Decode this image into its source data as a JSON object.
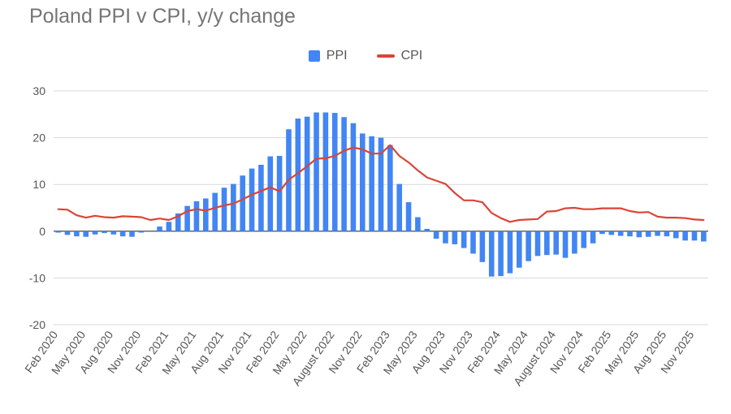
{
  "chart_data": {
    "type": "bar",
    "title": "Poland PPI v CPI, y/y change",
    "xlabel": "",
    "ylabel": "",
    "ylim": [
      -20,
      30
    ],
    "yticks": [
      30,
      20,
      10,
      0,
      -10,
      -20
    ],
    "grid": true,
    "legend_position": "top",
    "categories": [
      "Feb 2020",
      "Mar 2020",
      "Apr 2020",
      "May 2020",
      "Jun 2020",
      "Jul 2020",
      "Aug 2020",
      "Sep 2020",
      "Oct 2020",
      "Nov 2020",
      "Dec 2020",
      "Jan 2021",
      "Feb 2021",
      "Mar 2021",
      "Apr 2021",
      "May 2021",
      "Jun 2021",
      "Jul 2021",
      "Aug 2021",
      "Sep 2021",
      "Oct 2021",
      "Nov 2021",
      "Dec 2021",
      "Jan 2022",
      "Feb 2022",
      "Mar 2022",
      "Apr 2022",
      "May 2022",
      "Jun 2022",
      "Jul 2022",
      "August 2022",
      "Sep 2022",
      "Oct 2022",
      "Nov 2022",
      "Dec 2022",
      "Jan 2023",
      "Feb 2023",
      "Mar 2023",
      "Apr 2023",
      "May 2023",
      "Jun 2023",
      "Jul 2023",
      "Aug 2023",
      "Sep 2023",
      "Oct 2023",
      "Nov 2023",
      "Dec 2023",
      "Jan 2024",
      "Feb 2024",
      "Mar 2024",
      "Apr 2024",
      "May 2024",
      "Jun 2024",
      "Jul 2024",
      "August 2024",
      "Sep 2024",
      "Oct 2024",
      "Nov 2024",
      "Dec 2024",
      "Jan 2025",
      "Feb 2025",
      "Mar 2025",
      "Apr 2025",
      "May 2025",
      "Jun 2025",
      "Jul 2025",
      "Aug 2025",
      "Sep 2025",
      "Oct 2025",
      "Nov 2025",
      "Dec 2025"
    ],
    "tick_labels": [
      "Feb 2020",
      "May 2020",
      "Aug 2020",
      "Nov 2020",
      "Feb 2021",
      "May 2021",
      "Aug 2021",
      "Nov 2021",
      "Feb 2022",
      "May 2022",
      "August 2022",
      "Nov 2022",
      "Feb 2023",
      "May 2023",
      "Aug 2023",
      "Nov 2023",
      "Feb 2024",
      "May 2024",
      "August 2024",
      "Nov 2024",
      "Feb 2025",
      "May 2025",
      "Aug 2025",
      "Nov 2025"
    ],
    "series": [
      {
        "name": "PPI",
        "kind": "bar",
        "color": "#4285f4",
        "values": [
          -0.3,
          -0.8,
          -1.1,
          -1.2,
          -0.7,
          -0.4,
          -0.7,
          -1.1,
          -1.2,
          -0.3,
          0.0,
          1.0,
          2.0,
          3.8,
          5.4,
          6.4,
          7.0,
          8.2,
          9.3,
          10.1,
          11.9,
          13.4,
          14.2,
          16.0,
          16.1,
          21.8,
          24.1,
          24.5,
          25.4,
          25.4,
          25.3,
          24.4,
          23.1,
          20.9,
          20.3,
          20.0,
          18.4,
          10.1,
          6.2,
          3.0,
          0.5,
          -1.6,
          -2.6,
          -2.8,
          -3.6,
          -4.8,
          -6.6,
          -9.7,
          -9.6,
          -9.0,
          -7.8,
          -6.4,
          -5.3,
          -5.1,
          -5.0,
          -5.7,
          -4.8,
          -3.6,
          -2.6,
          -0.6,
          -0.8,
          -1.0,
          -1.1,
          -1.3,
          -1.2,
          -1.0,
          -1.1,
          -1.5,
          -2.0,
          -2.0,
          -2.2
        ]
      },
      {
        "name": "CPI",
        "kind": "line",
        "color": "#db4437",
        "values": [
          4.7,
          4.6,
          3.4,
          2.9,
          3.3,
          3.0,
          2.9,
          3.2,
          3.1,
          3.0,
          2.4,
          2.7,
          2.4,
          3.2,
          4.3,
          4.7,
          4.4,
          5.0,
          5.5,
          5.9,
          6.8,
          7.8,
          8.6,
          9.4,
          8.5,
          11.0,
          12.4,
          13.9,
          15.5,
          15.6,
          16.1,
          17.2,
          17.9,
          17.5,
          16.6,
          16.6,
          18.4,
          16.1,
          14.7,
          13.0,
          11.5,
          10.8,
          10.1,
          8.2,
          6.6,
          6.6,
          6.2,
          3.9,
          2.8,
          2.0,
          2.4,
          2.5,
          2.6,
          4.2,
          4.3,
          4.9,
          5.0,
          4.7,
          4.7,
          4.9,
          4.9,
          4.9,
          4.3,
          4.0,
          4.1,
          3.1,
          2.9,
          2.9,
          2.8,
          2.5,
          2.4
        ]
      }
    ]
  }
}
